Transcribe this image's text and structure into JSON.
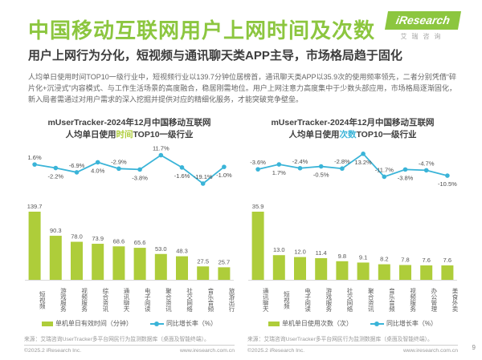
{
  "page": {
    "title": "中国移动互联网用户上网时间及次数",
    "subtitle": "用户上网行为分化，短视频与通讯聊天类APP主导，市场格局趋于固化",
    "body": "人均单日使用时间TOP10一级行业中，短视频行业以139.7分钟位居榜首，通讯聊天类APP以35.9次的使用频率领先，二者分别凭借“碎片化+沉浸式”内容模式、与工作生活场景的高度融合，稳居刚需地位。用户上网注意力高度集中于少数头部应用，市场格局逐渐固化，新入局者需通过对用户需求的深入挖掘并提供对应的精细化服务，才能突破竞争壁垒。",
    "page_number": "9"
  },
  "logo": {
    "text": "iResearch",
    "subtext": "艾瑞咨询"
  },
  "footer": {
    "source": "来源：艾瑞咨询UserTracker多平台网民行为监测数据库（桌面及智能终端）。",
    "copyright": "©2025.2 iResearch Inc.",
    "website": "www.iresearch.com.cn"
  },
  "colors": {
    "brand_green": "#8cc63f",
    "bar_green": "#aecd3a",
    "line_cyan": "#3ab4d8"
  },
  "chart_data": [
    {
      "type": "bar+line",
      "title_line1": "mUserTracker-2024年12月中国移动互联网",
      "title_line2_pre": "人均单日使用",
      "title_highlight": "时间",
      "title_line2_post": "TOP10一级行业",
      "highlight_color": "#aecd3a",
      "categories": [
        "短视频",
        "游戏服务",
        "视频服务",
        "综合资讯",
        "通讯聊天",
        "电子阅读",
        "聚合资讯",
        "社交网络",
        "音乐音频",
        "旅游出行"
      ],
      "series": [
        {
          "name": "单机单日有效时间（分钟）",
          "type": "bar",
          "values": [
            139.7,
            90.3,
            78.0,
            73.9,
            68.6,
            65.6,
            53.0,
            48.3,
            27.5,
            25.7
          ]
        },
        {
          "name": "同比增长率（%）",
          "type": "line",
          "values": [
            1.6,
            -2.2,
            -6.9,
            4.0,
            -2.9,
            -3.8,
            11.7,
            -1.6,
            -19.1,
            -1.0
          ]
        }
      ],
      "legend_position": "bottom",
      "grid": false
    },
    {
      "type": "bar+line",
      "title_line1": "mUserTracker-2024年12月中国移动互联网",
      "title_line2_pre": "人均单日使用",
      "title_highlight": "次数",
      "title_line2_post": "TOP10一级行业",
      "highlight_color": "#3ab4d8",
      "categories": [
        "通讯聊天",
        "短视频",
        "电子阅读",
        "游戏服务",
        "社交网络",
        "聚合资讯",
        "音乐音频",
        "视频服务",
        "办公管理",
        "美食外卖"
      ],
      "series": [
        {
          "name": "单机单日使用次数（次）",
          "type": "bar",
          "values": [
            35.9,
            13.0,
            12.0,
            11.4,
            9.8,
            9.1,
            8.2,
            7.8,
            7.6,
            7.6
          ]
        },
        {
          "name": "同比增长率（%）",
          "type": "line",
          "values": [
            -3.6,
            1.7,
            -2.4,
            -0.5,
            -2.8,
            13.2,
            -11.7,
            -3.8,
            -4.7,
            -10.5
          ]
        }
      ],
      "legend_position": "bottom",
      "grid": false
    }
  ]
}
